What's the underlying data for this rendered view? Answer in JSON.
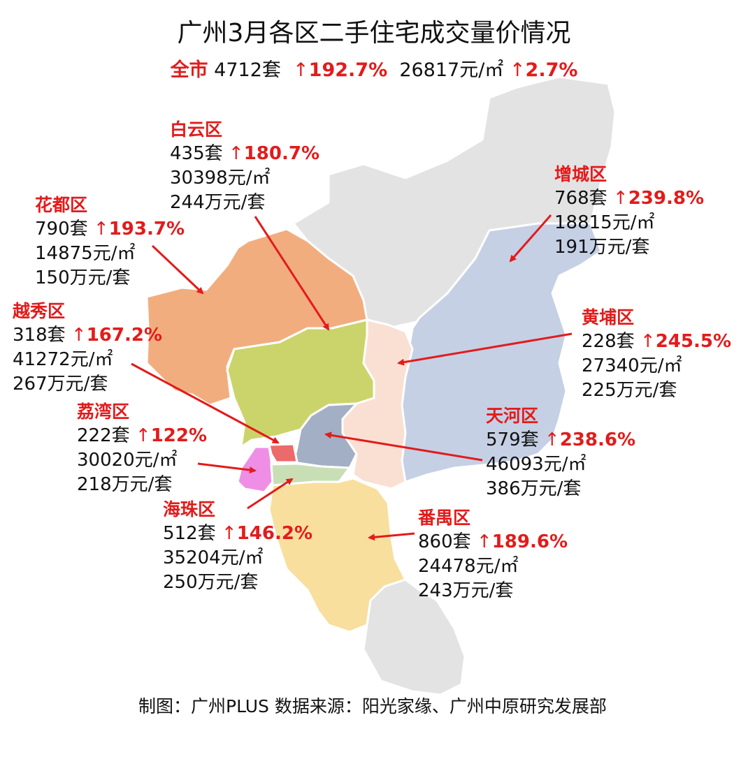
{
  "title": "广州3月各区二手住宅成交量价情况",
  "summary": {
    "label": "全市",
    "volume": "4712套",
    "volume_change": "192.7%",
    "price": "26817元/㎡",
    "price_change": "2.7%",
    "up_symbol": "↑"
  },
  "districts": [
    {
      "name": "白云区",
      "volume": "435套",
      "change": "180.7%",
      "price": "30398元/㎡",
      "total": "244万元/套"
    },
    {
      "name": "花都区",
      "volume": "790套",
      "change": "193.7%",
      "price": "14875元/㎡",
      "total": "150万元/套"
    },
    {
      "name": "增城区",
      "volume": "768套",
      "change": "239.8%",
      "price": "18815元/㎡",
      "total": "191万元/套"
    },
    {
      "name": "越秀区",
      "volume": "318套",
      "change": "167.2%",
      "price": "41272元/㎡",
      "total": "267万元/套"
    },
    {
      "name": "黄埔区",
      "volume": "228套",
      "change": "245.5%",
      "price": "27340元/㎡",
      "total": "225万元/套"
    },
    {
      "name": "荔湾区",
      "volume": "222套",
      "change": "122%",
      "price": "30020元/㎡",
      "total": "218万元/套"
    },
    {
      "name": "天河区",
      "volume": "579套",
      "change": "238.6%",
      "price": "46093元/㎡",
      "total": "386万元/套"
    },
    {
      "name": "海珠区",
      "volume": "512套",
      "change": "146.2%",
      "price": "35204元/㎡",
      "total": "250万元/套"
    },
    {
      "name": "番禺区",
      "volume": "860套",
      "change": "189.6%",
      "price": "24478元/㎡",
      "total": "243万元/套"
    }
  ],
  "footer": "制图：广州PLUS 数据来源：阳光家缘、广州中原研究发展部",
  "colors": {
    "accent_red": "#e31b1b",
    "conghua_grey": "#e3e3e3",
    "huadu": "#f2ad7f",
    "baiyun": "#cbd46a",
    "zengcheng": "#c5d0e5",
    "huangpu": "#f9e0d3",
    "tianhe": "#a3afc4",
    "yuexiu": "#ec6a6a",
    "liwan": "#ee8fe5",
    "haizhu": "#c8dfb6",
    "panyu": "#f8df9e",
    "nansha": "#e3e3e3"
  }
}
